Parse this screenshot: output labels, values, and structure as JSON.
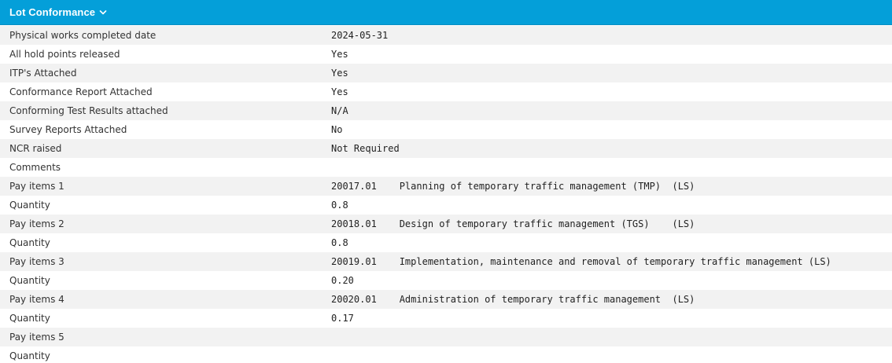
{
  "panel": {
    "title": "Lot Conformance",
    "header_color": "#049fd9",
    "chevron_icon": "chevron-down-icon"
  },
  "rows": [
    {
      "label": "Physical works completed date",
      "value": "2024-05-31"
    },
    {
      "label": "All hold points released",
      "value": "Yes"
    },
    {
      "label": "ITP's Attached",
      "value": "Yes"
    },
    {
      "label": "Conformance Report Attached",
      "value": "Yes"
    },
    {
      "label": "Conforming Test Results attached",
      "value": "N/A"
    },
    {
      "label": "Survey Reports Attached",
      "value": "No"
    },
    {
      "label": "NCR raised",
      "value": "Not Required"
    },
    {
      "label": "Comments",
      "value": ""
    },
    {
      "label": "Pay items 1",
      "value": "20017.01    Planning of temporary traffic management (TMP)  (LS)"
    },
    {
      "label": "Quantity",
      "value": "0.8"
    },
    {
      "label": "Pay items 2",
      "value": "20018.01    Design of temporary traffic management (TGS)    (LS)"
    },
    {
      "label": "Quantity",
      "value": "0.8"
    },
    {
      "label": "Pay items 3",
      "value": "20019.01    Implementation, maintenance and removal of temporary traffic management (LS)"
    },
    {
      "label": "Quantity",
      "value": "0.20"
    },
    {
      "label": "Pay items 4",
      "value": "20020.01    Administration of temporary traffic management  (LS)"
    },
    {
      "label": "Quantity",
      "value": "0.17"
    },
    {
      "label": "Pay items 5",
      "value": ""
    },
    {
      "label": "Quantity",
      "value": ""
    }
  ]
}
